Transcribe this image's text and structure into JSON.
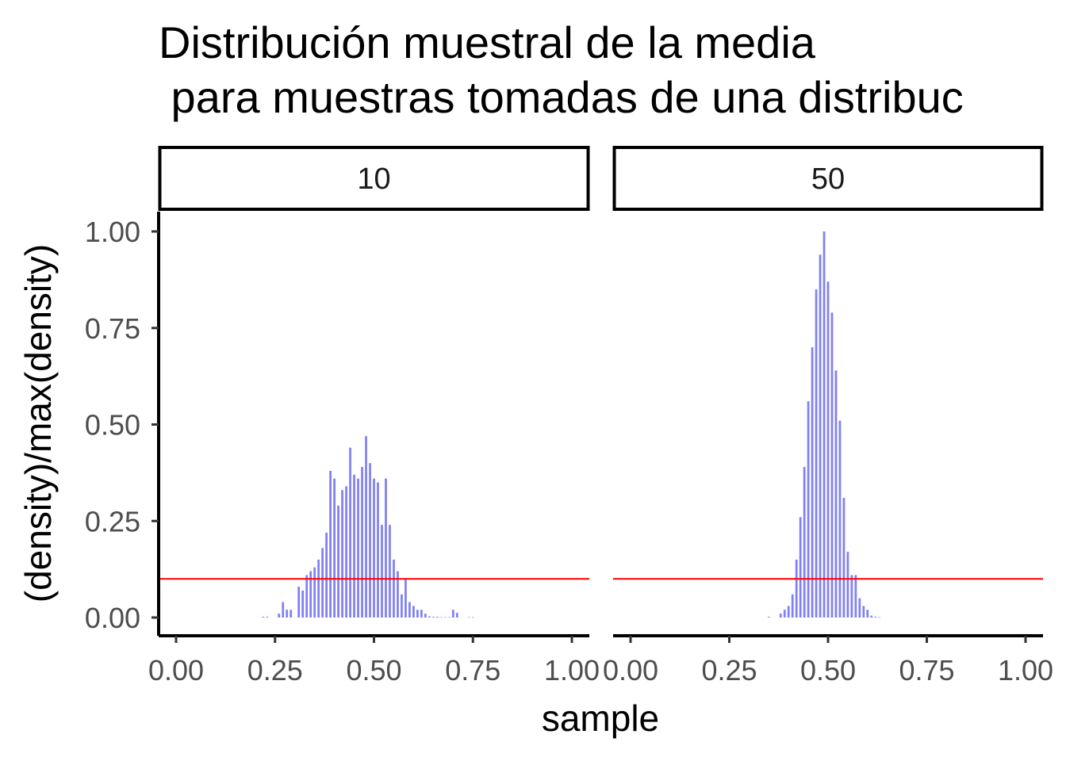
{
  "chart_data": {
    "type": "bar",
    "title_lines": [
      "Distribución muestral de la media",
      " para muestras tomadas de una distribuc"
    ],
    "xlabel": "sample",
    "ylabel": "(density)/max(density)",
    "xlim": [
      0,
      1
    ],
    "ylim": [
      0,
      1
    ],
    "x_ticks": [
      0,
      0.25,
      0.5,
      0.75,
      1
    ],
    "x_tick_labels": [
      "0.00",
      "0.25",
      "0.50",
      "0.75",
      "1.00"
    ],
    "y_ticks": [
      0,
      0.25,
      0.5,
      0.75,
      1
    ],
    "y_tick_labels": [
      "0.00",
      "0.25",
      "0.50",
      "0.75",
      "1.00"
    ],
    "grid": false,
    "legend": "none",
    "bar_color": "#8080f5",
    "hline": {
      "y": 0.1,
      "color": "#ff0000"
    },
    "facets": [
      {
        "label": "10",
        "x": [
          0.22,
          0.23,
          0.26,
          0.27,
          0.28,
          0.29,
          0.31,
          0.32,
          0.33,
          0.34,
          0.35,
          0.36,
          0.37,
          0.38,
          0.39,
          0.4,
          0.41,
          0.42,
          0.43,
          0.44,
          0.45,
          0.46,
          0.47,
          0.48,
          0.49,
          0.5,
          0.51,
          0.52,
          0.53,
          0.54,
          0.55,
          0.56,
          0.57,
          0.58,
          0.59,
          0.6,
          0.61,
          0.62,
          0.63,
          0.64,
          0.65,
          0.66,
          0.67,
          0.68,
          0.69,
          0.7,
          0.71,
          0.74,
          0.75
        ],
        "values": [
          0.002,
          0.002,
          0.01,
          0.04,
          0.02,
          0.02,
          0.08,
          0.07,
          0.11,
          0.12,
          0.13,
          0.15,
          0.18,
          0.22,
          0.38,
          0.36,
          0.29,
          0.33,
          0.34,
          0.44,
          0.37,
          0.36,
          0.39,
          0.47,
          0.4,
          0.36,
          0.35,
          0.24,
          0.36,
          0.24,
          0.15,
          0.12,
          0.06,
          0.1,
          0.04,
          0.03,
          0.02,
          0.02,
          0.01,
          0.003,
          0.002,
          0.002,
          0.001,
          0.001,
          0.001,
          0.02,
          0.012,
          0.001,
          0.001
        ]
      },
      {
        "label": "50",
        "x": [
          0.35,
          0.38,
          0.39,
          0.4,
          0.41,
          0.42,
          0.43,
          0.44,
          0.45,
          0.46,
          0.47,
          0.48,
          0.49,
          0.5,
          0.51,
          0.52,
          0.53,
          0.54,
          0.55,
          0.56,
          0.57,
          0.58,
          0.59,
          0.6,
          0.61,
          0.62,
          0.63
        ],
        "values": [
          0.002,
          0.01,
          0.02,
          0.03,
          0.06,
          0.15,
          0.26,
          0.39,
          0.56,
          0.7,
          0.85,
          0.94,
          1.0,
          0.87,
          0.79,
          0.64,
          0.51,
          0.31,
          0.17,
          0.11,
          0.11,
          0.05,
          0.03,
          0.02,
          0.005,
          0.002,
          0.001
        ]
      }
    ]
  }
}
